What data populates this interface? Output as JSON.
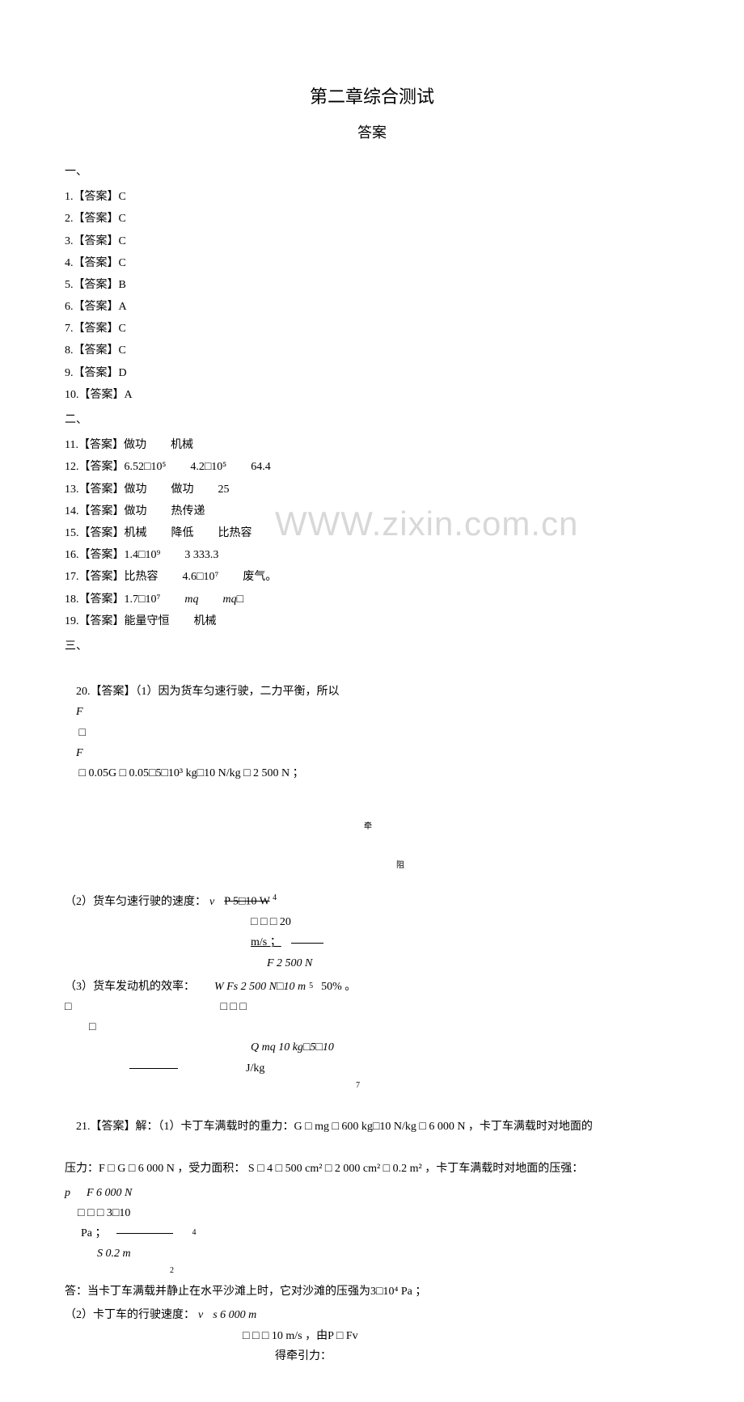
{
  "header": {
    "title": "第二章综合测试",
    "subtitle": "答案"
  },
  "section1": {
    "marker": "一、",
    "items": [
      {
        "n": "1",
        "ans": "C"
      },
      {
        "n": "2",
        "ans": "C"
      },
      {
        "n": "3",
        "ans": "C"
      },
      {
        "n": "4",
        "ans": "C"
      },
      {
        "n": "5",
        "ans": "B"
      },
      {
        "n": "6",
        "ans": "A"
      },
      {
        "n": "7",
        "ans": "C"
      },
      {
        "n": "8",
        "ans": "C"
      },
      {
        "n": "9",
        "ans": "D"
      },
      {
        "n": "10",
        "ans": "A"
      }
    ]
  },
  "section2": {
    "marker": "二、",
    "items": [
      {
        "n": "11",
        "parts": [
          "做功",
          "机械"
        ]
      },
      {
        "n": "12",
        "parts": [
          "6.52□10⁵",
          "4.2□10⁵",
          "64.4"
        ]
      },
      {
        "n": "13",
        "parts": [
          "做功",
          "做功",
          "25"
        ]
      },
      {
        "n": "14",
        "parts": [
          "做功",
          "热传递"
        ]
      },
      {
        "n": "15",
        "parts": [
          "机械",
          "降低",
          "比热容"
        ]
      },
      {
        "n": "16",
        "parts": [
          "1.4□10⁹",
          "3 333.3"
        ]
      },
      {
        "n": "17",
        "parts": [
          "比热容",
          "4.6□10⁷",
          "废气。"
        ]
      },
      {
        "n": "18",
        "parts": [
          "1.7□10⁷",
          "mq",
          "mq□"
        ]
      },
      {
        "n": "19",
        "parts": [
          "能量守恒",
          "机械"
        ]
      }
    ]
  },
  "section3_marker": "三、",
  "q20": {
    "prefix": "20.【答案】（1）因为货车匀速行驶，二力平衡，所以",
    "eq1_vars": {
      "F1": "F",
      "sub1": "牵",
      "F2": "F",
      "sub2": "阻"
    },
    "eq1_text": " □ 0.05G □ 0.05□5□10³ kg□10 N/kg □ 2 500 N ；",
    "p2_label": "（2）货车匀速行驶的速度：",
    "p2": {
      "v": "v",
      "num": "P  5□10  W",
      "num_sup": "4",
      "mid": "□   □          □ 20",
      "unit": "m/s ；",
      "den": "F   2 500 N"
    },
    "p3_label": "（3）货车发动机的效率：",
    "p3": {
      "line1_l": "W   Fs    2 500 N□10  m",
      "line1_sup": "5",
      "line1_r": "50% 。",
      "line2": "□       □       □",
      "line3": "Q   mq   10 kg□5□10",
      "line4": "J/kg",
      "line4_sup": "7"
    }
  },
  "q21": {
    "prefix": "21.【答案】解：（1）卡丁车满载时的重力：G □ mg □ 600 kg□10 N/kg □ 6 000 N ，卡丁车满载时对地面的",
    "line2": "压力：F □ G □ 6 000 N ，受力面积： S □ 4 □ 500 cm² □ 2 000 cm² □ 0.2 m² ，卡丁车满载时对地面的压强：",
    "frac": {
      "lead": "p",
      "num": "F   6 000 N",
      "mid": "□          □          □ 3□10",
      "unit": "Pa ；",
      "sup": "4",
      "den": "S    0.2 m",
      "den_sup": "2"
    },
    "ans_line": "答：当卡丁车满载并静止在水平沙滩上时，它对沙滩的压强为3□10⁴ Pa ；",
    "p2_label": "（2）卡丁车的行驶速度：",
    "p2": {
      "v": "v",
      "num": "s   6 000 m",
      "mid": "□   □          □ 10 m/s ，由P □ Fv",
      "tail": "得牵引力："
    }
  },
  "watermark_text": "WWW.zixin.com.cn",
  "style": {
    "body_width": 920,
    "body_height": 1301,
    "bg": "#ffffff",
    "text_color": "#000000",
    "watermark_color": "#d8d8d8",
    "title_fontsize": 22,
    "subtitle_fontsize": 18,
    "body_fontsize": 14,
    "watermark_fontsize": 42
  }
}
